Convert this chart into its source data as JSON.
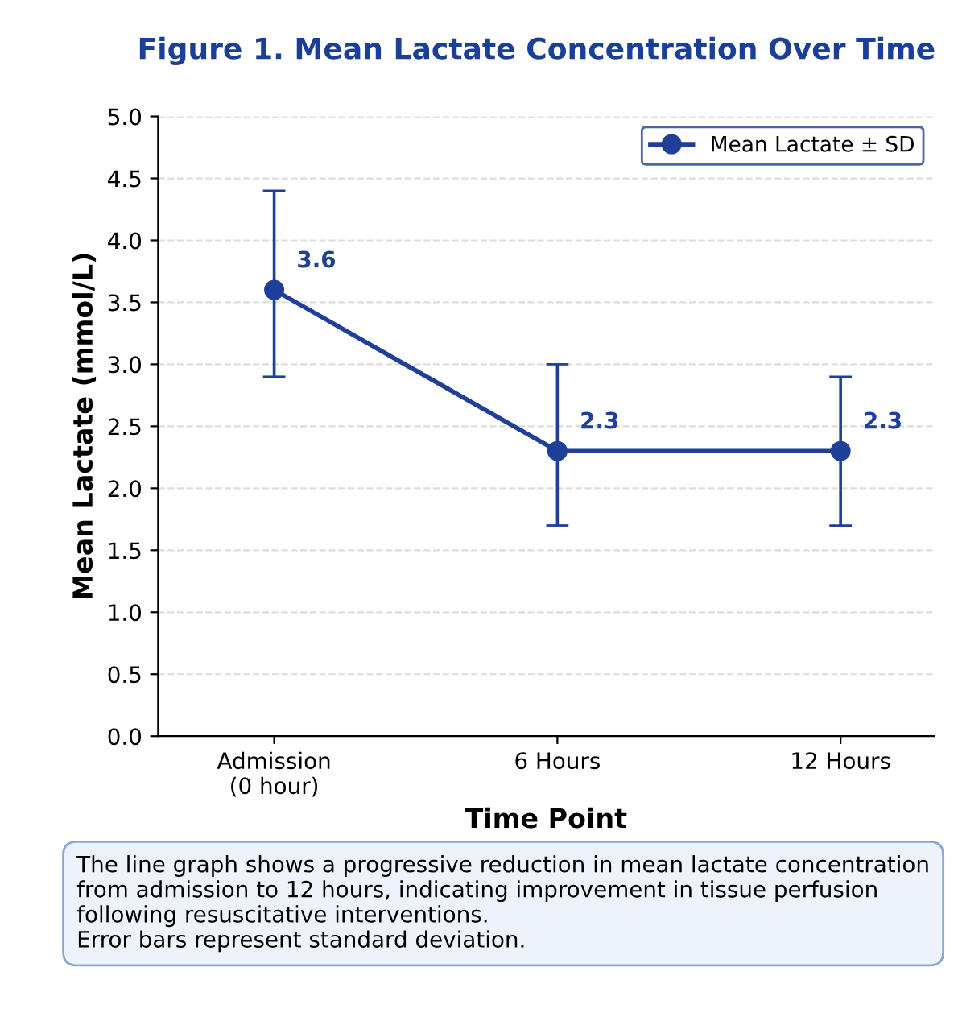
{
  "chart_data": {
    "type": "line",
    "title": "Figure 1. Mean Lactate Concentration Over Time",
    "xlabel": "Time Point",
    "ylabel": "Mean Lactate (mmol/L)",
    "categories": [
      "Admission\n(0 hour)",
      "6 Hours",
      "12 Hours"
    ],
    "series": [
      {
        "name": "Mean Lactate ± SD",
        "color": "#1f3f99",
        "values": [
          3.6,
          2.3,
          2.3
        ],
        "errors": [
          [
            2.9,
            4.4
          ],
          [
            1.7,
            3.0
          ],
          [
            1.7,
            2.9
          ]
        ]
      }
    ],
    "data_labels": true,
    "ylim": [
      0,
      5
    ],
    "yticks": [
      {
        "value": 0,
        "label": "0.0"
      },
      0.5,
      {
        "value": 1,
        "label": "1.0"
      },
      1.5,
      {
        "value": 2,
        "label": "2.0"
      },
      2.5,
      {
        "value": 3,
        "label": "3.0"
      },
      3.5,
      {
        "value": 4,
        "label": "4.0"
      },
      4.5,
      {
        "value": 5,
        "label": "5.0"
      }
    ],
    "grid": "y",
    "legend": "top right",
    "marker": "circle",
    "line_style": "solid",
    "annotations": [
      "The line graph shows a progressive reduction in mean lactate concentration from admission to 12 hours, indicating improvement in tissue perfusion following resuscitative interventions.\nError bars represent standard deviation."
    ]
  }
}
